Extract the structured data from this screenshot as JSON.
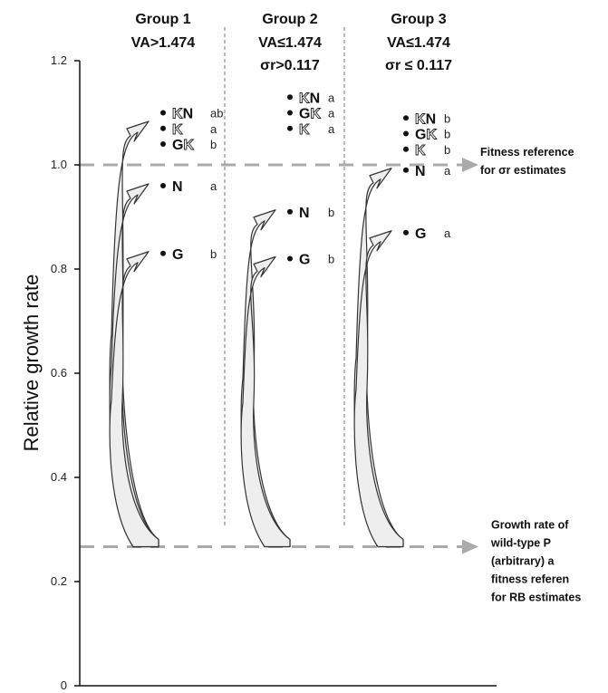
{
  "chart_data": {
    "type": "scatter",
    "ylabel": "Relative growth rate",
    "ylim": [
      0,
      1.2
    ],
    "y_ticks": [
      "0",
      "0.2",
      "0.4",
      "0.6",
      "0.8",
      "1.0",
      "1.2"
    ],
    "grid": false,
    "reference_lines": [
      {
        "y": 1.0,
        "label_lines": [
          "Fitness  reference",
          "for σr estimates"
        ]
      },
      {
        "y": 0.267,
        "label_lines": [
          "Growth  rate  of",
          "wild-type        P",
          "(arbitrary)        a",
          "fitness    referen",
          "for RB estimates"
        ]
      }
    ],
    "arrow_base": 0.267,
    "groups": [
      {
        "title": "Group 1",
        "subtitle_lines": [
          "VA>1.474"
        ],
        "points": [
          {
            "label": "KN",
            "y": 1.1,
            "letter": "ab"
          },
          {
            "label": "K",
            "y": 1.07,
            "letter": "a"
          },
          {
            "label": "GK",
            "y": 1.04,
            "letter": "b"
          },
          {
            "label": "N",
            "y": 0.96,
            "letter": "a"
          },
          {
            "label": "G",
            "y": 0.83,
            "letter": "b"
          }
        ],
        "arrows_to": [
          1.08,
          0.96,
          0.83
        ]
      },
      {
        "title": "Group 2",
        "subtitle_lines": [
          "VA≤1.474",
          "σr>0.117"
        ],
        "points": [
          {
            "label": "KN",
            "y": 1.13,
            "letter": "a"
          },
          {
            "label": "GK",
            "y": 1.1,
            "letter": "a"
          },
          {
            "label": "K",
            "y": 1.07,
            "letter": "a"
          },
          {
            "label": "N",
            "y": 0.91,
            "letter": "b"
          },
          {
            "label": "G",
            "y": 0.82,
            "letter": "b"
          }
        ],
        "arrows_to": [
          0.91,
          0.82
        ]
      },
      {
        "title": "Group 3",
        "subtitle_lines": [
          "VA≤1.474",
          "σr ≤ 0.117"
        ],
        "points": [
          {
            "label": "KN",
            "y": 1.09,
            "letter": "b"
          },
          {
            "label": "GK",
            "y": 1.06,
            "letter": "b"
          },
          {
            "label": "K",
            "y": 1.03,
            "letter": "b"
          },
          {
            "label": "N",
            "y": 0.99,
            "letter": "a"
          },
          {
            "label": "G",
            "y": 0.87,
            "letter": "a"
          }
        ],
        "arrows_to": [
          0.99,
          0.87
        ]
      }
    ],
    "colors": {
      "axis": "#111111",
      "reference_line": "#aaaaaa",
      "arrow_fill": "#eeeeee",
      "arrow_stroke": "#333333",
      "separator": "#777777"
    }
  }
}
